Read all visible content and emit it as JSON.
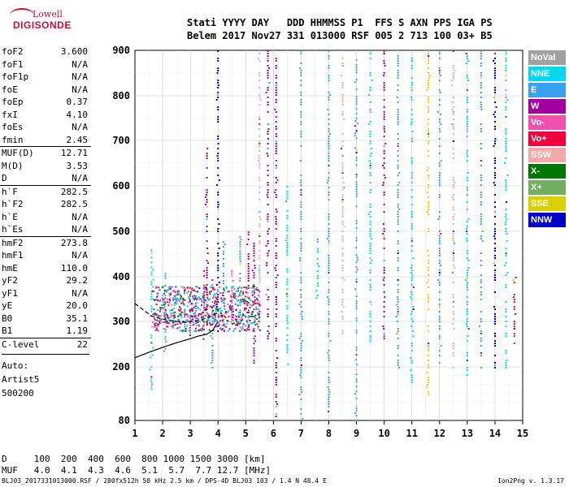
{
  "logo": {
    "line1": "Lowell",
    "line2": "DIGISONDE"
  },
  "header": {
    "line1": "Stati YYYY DAY   DDD HHMMSS P1  FFS S AXN PPS IGA PS",
    "line2": "Belem 2017 Nov27 331 013000 RSF 005 2 713 100 03+ B5"
  },
  "params": [
    {
      "k": "foF2",
      "v": "3.600",
      "sep": false
    },
    {
      "k": "foF1",
      "v": "N/A",
      "sep": false
    },
    {
      "k": "foF1p",
      "v": "N/A",
      "sep": false
    },
    {
      "k": "foE",
      "v": "N/A",
      "sep": false
    },
    {
      "k": "foEp",
      "v": "0.37",
      "sep": false
    },
    {
      "k": "fxI",
      "v": "4.10",
      "sep": false
    },
    {
      "k": "foEs",
      "v": "N/A",
      "sep": false
    },
    {
      "k": "fmin",
      "v": "2.45",
      "sep": false
    },
    {
      "k": "MUF(D)",
      "v": "12.71",
      "sep": true
    },
    {
      "k": "M(D)",
      "v": "3.53",
      "sep": false
    },
    {
      "k": "D",
      "v": "N/A",
      "sep": false
    },
    {
      "k": "h`F",
      "v": "282.5",
      "sep": true
    },
    {
      "k": "h`F2",
      "v": "282.5",
      "sep": false
    },
    {
      "k": "h`E",
      "v": "N/A",
      "sep": false
    },
    {
      "k": "h`Es",
      "v": "N/A",
      "sep": false
    },
    {
      "k": "hmF2",
      "v": "273.8",
      "sep": true
    },
    {
      "k": "hmF1",
      "v": "N/A",
      "sep": false
    },
    {
      "k": "hmE",
      "v": "110.0",
      "sep": false
    },
    {
      "k": "yF2",
      "v": "29.2",
      "sep": false
    },
    {
      "k": "yF1",
      "v": "N/A",
      "sep": false
    },
    {
      "k": "yE",
      "v": "20.0",
      "sep": false
    },
    {
      "k": "B0",
      "v": "35.1",
      "sep": false
    },
    {
      "k": "B1",
      "v": "1.19",
      "sep": false
    },
    {
      "k": "C-level",
      "v": "22",
      "sep": true
    }
  ],
  "auto": [
    "Auto:",
    "Artist5",
    "500200"
  ],
  "legend": [
    {
      "label": "NoVal",
      "color": "#a0a0a0"
    },
    {
      "label": "NNE",
      "color": "#00d8f0"
    },
    {
      "label": "E",
      "color": "#3aa0f0"
    },
    {
      "label": "W",
      "color": "#a000a0"
    },
    {
      "label": "Vo-",
      "color": "#f050b0"
    },
    {
      "label": "Vo+",
      "color": "#f0003c"
    },
    {
      "label": "SSW",
      "color": "#f4a8a8"
    },
    {
      "label": "X-",
      "color": "#007800"
    },
    {
      "label": "X+",
      "color": "#70b060"
    },
    {
      "label": "SSE",
      "color": "#d8d000"
    },
    {
      "label": "NNW",
      "color": "#0000c8"
    }
  ],
  "bottom": {
    "line1": "D     100  200  400  600  800 1000 1500 3000 [km]",
    "line2": "MUF   4.0  4.1  4.3  4.6  5.1  5.7  7.7 12.7 [MHz]"
  },
  "footer": {
    "left": "BLJ03_2017331013000.RSF / 280fx512h 50 kHz 2.5 km / DPS-4D BLJ03 103 / 1.4 N 48.4 E",
    "right": "Ion2Png v. 1.3.17"
  },
  "chart_data": {
    "type": "scatter",
    "xlim": [
      1,
      15
    ],
    "ylim": [
      80,
      900
    ],
    "xticks": [
      1,
      2,
      3,
      4,
      5,
      6,
      7,
      8,
      9,
      10,
      11,
      12,
      13,
      14,
      15
    ],
    "yticks": [
      80,
      200,
      300,
      400,
      500,
      600,
      700,
      800,
      900
    ],
    "grid": true,
    "echo_columns": [
      {
        "x": 1.6,
        "ymin": 150,
        "ymax": 460,
        "color": "#00d8f0"
      },
      {
        "x": 1.8,
        "ymin": 280,
        "ymax": 320,
        "color": "#f050b0"
      },
      {
        "x": 2.1,
        "ymin": 230,
        "ymax": 420,
        "color": "#3aa0f0"
      },
      {
        "x": 2.4,
        "ymin": 280,
        "ymax": 320,
        "color": "#f050b0"
      },
      {
        "x": 2.6,
        "ymin": 300,
        "ymax": 380,
        "color": "#f050b0"
      },
      {
        "x": 2.8,
        "ymin": 290,
        "ymax": 350,
        "color": "#3aa0f0"
      },
      {
        "x": 3.0,
        "ymin": 270,
        "ymax": 380,
        "color": "#f050b0"
      },
      {
        "x": 3.2,
        "ymin": 290,
        "ymax": 380,
        "color": "#3aa0f0"
      },
      {
        "x": 3.5,
        "ymin": 250,
        "ymax": 420,
        "color": "#f0003c"
      },
      {
        "x": 3.6,
        "ymin": 280,
        "ymax": 700,
        "color": "#a000a0"
      },
      {
        "x": 3.8,
        "ymin": 200,
        "ymax": 400,
        "color": "#3aa0f0"
      },
      {
        "x": 4.0,
        "ymin": 280,
        "ymax": 900,
        "color": "#0000c8"
      },
      {
        "x": 4.2,
        "ymin": 300,
        "ymax": 500,
        "color": "#3aa0f0"
      },
      {
        "x": 4.5,
        "ymin": 280,
        "ymax": 420,
        "color": "#f050b0"
      },
      {
        "x": 4.8,
        "ymin": 280,
        "ymax": 500,
        "color": "#3aa0f0"
      },
      {
        "x": 5.1,
        "ymin": 280,
        "ymax": 500,
        "color": "#f0003c"
      },
      {
        "x": 5.3,
        "ymin": 200,
        "ymax": 480,
        "color": "#a000a0"
      },
      {
        "x": 5.5,
        "ymin": 280,
        "ymax": 900,
        "color": "#f4a8a8"
      },
      {
        "x": 5.8,
        "ymin": 260,
        "ymax": 900,
        "color": "#a000a0"
      },
      {
        "x": 6.1,
        "ymin": 80,
        "ymax": 900,
        "color": "#a000a0"
      },
      {
        "x": 6.5,
        "ymin": 200,
        "ymax": 600,
        "color": "#00d8f0"
      },
      {
        "x": 7.0,
        "ymin": 80,
        "ymax": 900,
        "color": "#3aa0f0"
      },
      {
        "x": 7.6,
        "ymin": 350,
        "ymax": 500,
        "color": "#00d8f0"
      },
      {
        "x": 8.0,
        "ymin": 80,
        "ymax": 900,
        "color": "#3aa0f0"
      },
      {
        "x": 8.5,
        "ymin": 260,
        "ymax": 900,
        "color": "#f4a8a8"
      },
      {
        "x": 9.0,
        "ymin": 80,
        "ymax": 880,
        "color": "#3aa0f0"
      },
      {
        "x": 9.5,
        "ymin": 250,
        "ymax": 900,
        "color": "#00d8f0"
      },
      {
        "x": 10.0,
        "ymin": 250,
        "ymax": 900,
        "color": "#a000a0"
      },
      {
        "x": 10.5,
        "ymin": 200,
        "ymax": 900,
        "color": "#3aa0f0"
      },
      {
        "x": 11.0,
        "ymin": 150,
        "ymax": 900,
        "color": "#00d8f0"
      },
      {
        "x": 11.6,
        "ymin": 140,
        "ymax": 900,
        "color": "#d8d000"
      },
      {
        "x": 12.0,
        "ymin": 200,
        "ymax": 900,
        "color": "#3aa0f0"
      },
      {
        "x": 12.5,
        "ymin": 200,
        "ymax": 900,
        "color": "#f4a8a8"
      },
      {
        "x": 13.0,
        "ymin": 180,
        "ymax": 900,
        "color": "#00d8f0"
      },
      {
        "x": 13.5,
        "ymin": 200,
        "ymax": 900,
        "color": "#3aa0f0"
      },
      {
        "x": 14.0,
        "ymin": 200,
        "ymax": 900,
        "color": "#0000c8"
      },
      {
        "x": 14.4,
        "ymin": 200,
        "ymax": 900,
        "color": "#00d8f0"
      },
      {
        "x": 14.7,
        "ymin": 250,
        "ymax": 400,
        "color": "#f0003c"
      }
    ],
    "trace_ox": [
      [
        1.0,
        220
      ],
      [
        1.5,
        232
      ],
      [
        2.0,
        243
      ],
      [
        2.5,
        253
      ],
      [
        3.0,
        262
      ],
      [
        3.3,
        268
      ],
      [
        3.6,
        272
      ],
      [
        3.8,
        280
      ],
      [
        4.0,
        300
      ]
    ],
    "trace_x": [
      [
        1.0,
        340
      ],
      [
        1.6,
        312
      ],
      [
        2.2,
        302
      ],
      [
        2.8,
        298
      ],
      [
        3.3,
        302
      ],
      [
        3.7,
        310
      ],
      [
        4.0,
        320
      ]
    ]
  }
}
